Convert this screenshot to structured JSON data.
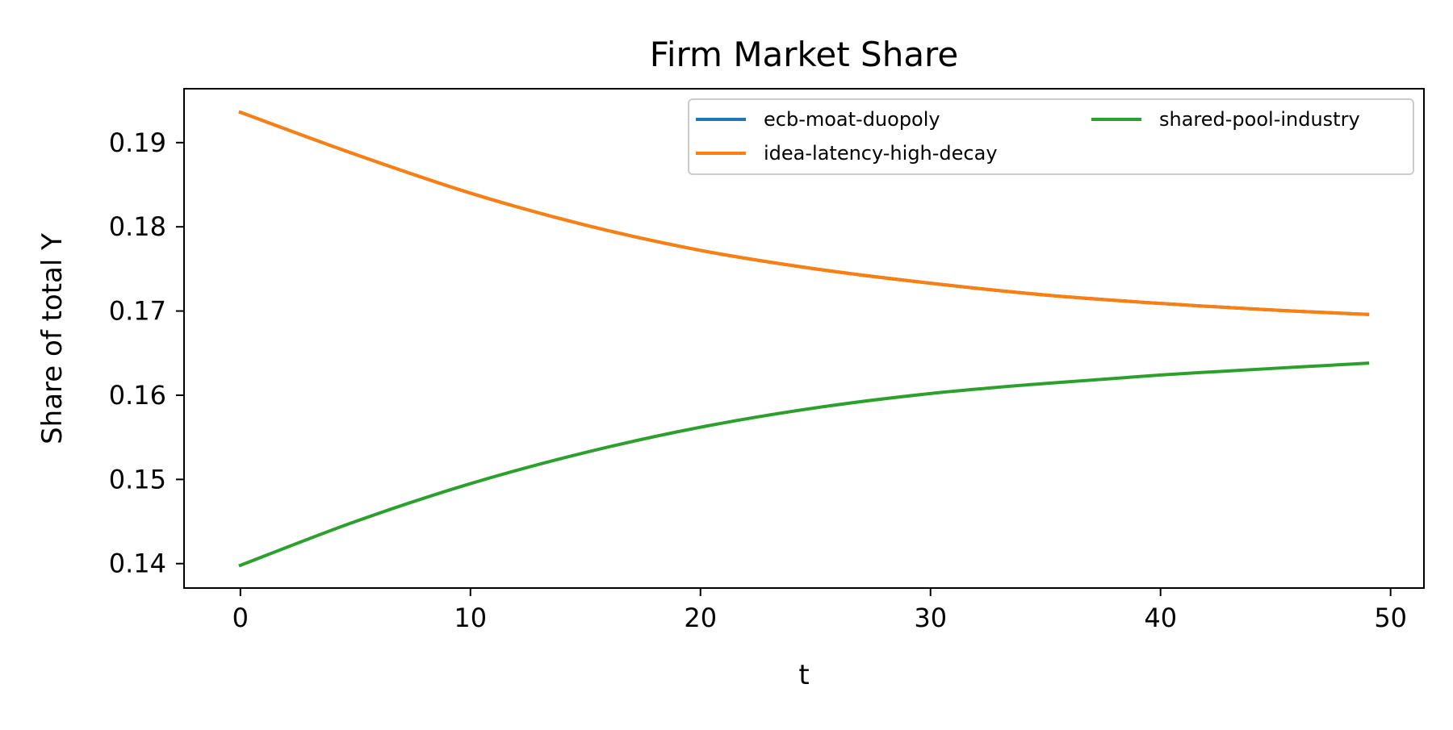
{
  "chart_data": {
    "type": "line",
    "title": "Firm Market Share",
    "xlabel": "t",
    "ylabel": "Share of total Y",
    "xlim": [
      -2.45,
      51.45
    ],
    "ylim": [
      0.1371,
      0.1964
    ],
    "xticks": [
      0,
      10,
      20,
      30,
      40,
      50
    ],
    "yticks": [
      0.14,
      0.15,
      0.16,
      0.17,
      0.18,
      0.19
    ],
    "xtick_labels": [
      "0",
      "10",
      "20",
      "30",
      "40",
      "50"
    ],
    "ytick_labels": [
      "0.14",
      "0.15",
      "0.16",
      "0.17",
      "0.18",
      "0.19"
    ],
    "grid": false,
    "legend": {
      "placement": "upper-right",
      "columns": 2
    },
    "series": [
      {
        "name": "ecb-moat-duopoly",
        "color": "#1f77b4",
        "x": [
          0,
          5,
          10,
          15,
          20,
          25,
          30,
          35,
          40,
          45,
          49
        ],
        "values": [
          0.1936,
          0.1886,
          0.184,
          0.1802,
          0.1772,
          0.175,
          0.1733,
          0.1719,
          0.1709,
          0.1701,
          0.1696
        ]
      },
      {
        "name": "idea-latency-high-decay",
        "color": "#ff7f0e",
        "x": [
          0,
          5,
          10,
          15,
          20,
          25,
          30,
          35,
          40,
          45,
          49
        ],
        "values": [
          0.1936,
          0.1886,
          0.184,
          0.1802,
          0.1772,
          0.175,
          0.1733,
          0.1719,
          0.1709,
          0.1701,
          0.1696
        ]
      },
      {
        "name": "shared-pool-industry",
        "color": "#2ca02c",
        "x": [
          0,
          5,
          10,
          15,
          20,
          25,
          30,
          35,
          40,
          45,
          49
        ],
        "values": [
          0.1398,
          0.145,
          0.1495,
          0.1532,
          0.1562,
          0.1585,
          0.1602,
          0.1614,
          0.1624,
          0.1632,
          0.1638
        ]
      }
    ]
  }
}
